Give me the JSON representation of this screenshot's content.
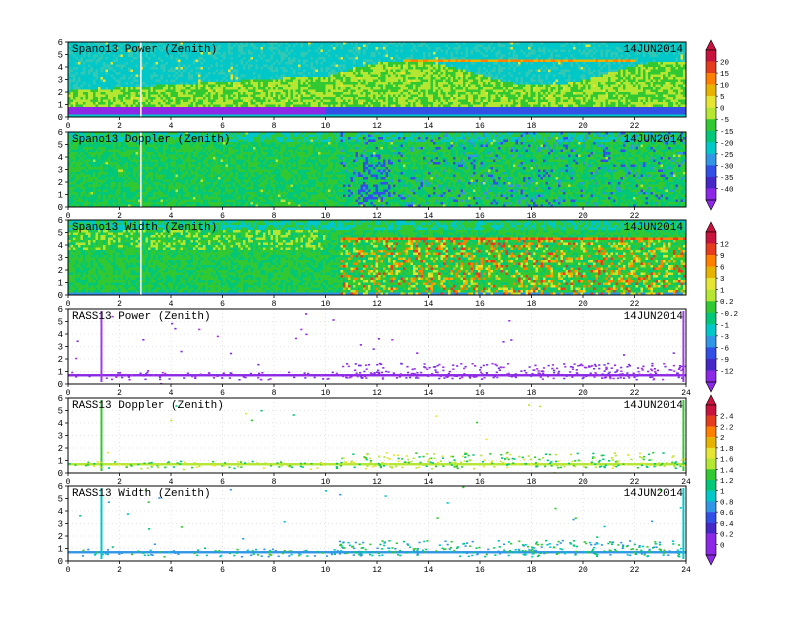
{
  "chart_data": [
    {
      "type": "heatmap",
      "title": "Spano13 Power (Zenith)",
      "date": "14JUN2014",
      "x_ticks": [
        "0",
        "2",
        "4",
        "6",
        "8",
        "10",
        "12",
        "14",
        "16",
        "18",
        "20",
        "22"
      ],
      "y_ticks": [
        "0",
        "1",
        "2",
        "3",
        "4",
        "5",
        "6"
      ],
      "xlim": [
        0,
        24
      ],
      "ylim": [
        0,
        6
      ],
      "grid": true,
      "colorbar": "A"
    },
    {
      "type": "heatmap",
      "title": "Spano13 Doppler (Zenith)",
      "date": "14JUN2014",
      "x_ticks": [
        "0",
        "2",
        "4",
        "6",
        "8",
        "10",
        "12",
        "14",
        "16",
        "18",
        "20",
        "22"
      ],
      "y_ticks": [
        "0",
        "1",
        "2",
        "3",
        "4",
        "5",
        "6"
      ],
      "xlim": [
        0,
        24
      ],
      "ylim": [
        0,
        6
      ],
      "grid": true,
      "colorbar": "A"
    },
    {
      "type": "heatmap",
      "title": "Spano13 Width (Zenith)",
      "date": "14JUN2014",
      "x_ticks": [
        "0",
        "2",
        "4",
        "6",
        "8",
        "10",
        "12",
        "14",
        "16",
        "18",
        "20",
        "22"
      ],
      "y_ticks": [
        "0",
        "1",
        "2",
        "3",
        "4",
        "5",
        "6"
      ],
      "xlim": [
        0,
        24
      ],
      "ylim": [
        0,
        6
      ],
      "grid": true,
      "colorbar": "B"
    },
    {
      "type": "heatmap",
      "title": "RASS13 Power (Zenith)",
      "date": "14JUN2014",
      "x_ticks": [
        "0",
        "2",
        "4",
        "6",
        "8",
        "10",
        "12",
        "14",
        "16",
        "18",
        "20",
        "22",
        "24"
      ],
      "y_ticks": [
        "0",
        "1",
        "2",
        "3",
        "4",
        "5",
        "6"
      ],
      "xlim": [
        0,
        24
      ],
      "ylim": [
        0,
        6
      ],
      "grid": true,
      "colorbar": "B"
    },
    {
      "type": "heatmap",
      "title": "RASS13 Doppler (Zenith)",
      "date": "14JUN2014",
      "x_ticks": [
        "0",
        "2",
        "4",
        "6",
        "8",
        "10",
        "12",
        "14",
        "16",
        "18",
        "20",
        "22",
        "24"
      ],
      "y_ticks": [
        "0",
        "1",
        "2",
        "3",
        "4",
        "5",
        "6"
      ],
      "xlim": [
        0,
        24
      ],
      "ylim": [
        0,
        6
      ],
      "grid": true,
      "colorbar": "C"
    },
    {
      "type": "heatmap",
      "title": "RASS13 Width (Zenith)",
      "date": "14JUN2014",
      "x_ticks": [
        "0",
        "2",
        "4",
        "6",
        "8",
        "10",
        "12",
        "14",
        "16",
        "18",
        "20",
        "22",
        "24"
      ],
      "y_ticks": [
        "0",
        "1",
        "2",
        "3",
        "4",
        "5",
        "6"
      ],
      "xlim": [
        0,
        24
      ],
      "ylim": [
        0,
        6
      ],
      "grid": true,
      "colorbar": "C"
    }
  ],
  "colorbars": {
    "A": {
      "labels": [
        "20",
        "15",
        "10",
        "5",
        "0",
        "-5",
        "-15",
        "-20",
        "-25",
        "-30",
        "-35",
        "-40"
      ],
      "colors": [
        "#c8143c",
        "#e63c1e",
        "#ff7f00",
        "#e6b400",
        "#e6e632",
        "#b4e632",
        "#32c832",
        "#00c878",
        "#00c8c8",
        "#3296e6",
        "#3250e6",
        "#4628c8",
        "#8c28e6"
      ]
    },
    "B": {
      "labels": [
        "12",
        "9",
        "6",
        "3",
        "1",
        "0.2",
        "-0.2",
        "-1",
        "-3",
        "-6",
        "-9",
        "-12"
      ],
      "colors": [
        "#c8143c",
        "#e63c1e",
        "#ff7f00",
        "#e6b400",
        "#e6e632",
        "#b4e632",
        "#32c832",
        "#00c878",
        "#00c8c8",
        "#3296e6",
        "#3250e6",
        "#4628c8",
        "#8c28e6"
      ]
    },
    "C": {
      "labels": [
        "2.4",
        "2.2",
        "2",
        "1.8",
        "1.6",
        "1.4",
        "1.2",
        "1",
        "0.8",
        "0.6",
        "0.4",
        "0.2",
        "0"
      ],
      "colors": [
        "#c8143c",
        "#e63c1e",
        "#ff7f00",
        "#e6b400",
        "#e6e632",
        "#b4e632",
        "#32c832",
        "#00c878",
        "#00c8c8",
        "#3296e6",
        "#3250e6",
        "#4628c8",
        "#8c28e6",
        "#8c28e6"
      ]
    }
  }
}
